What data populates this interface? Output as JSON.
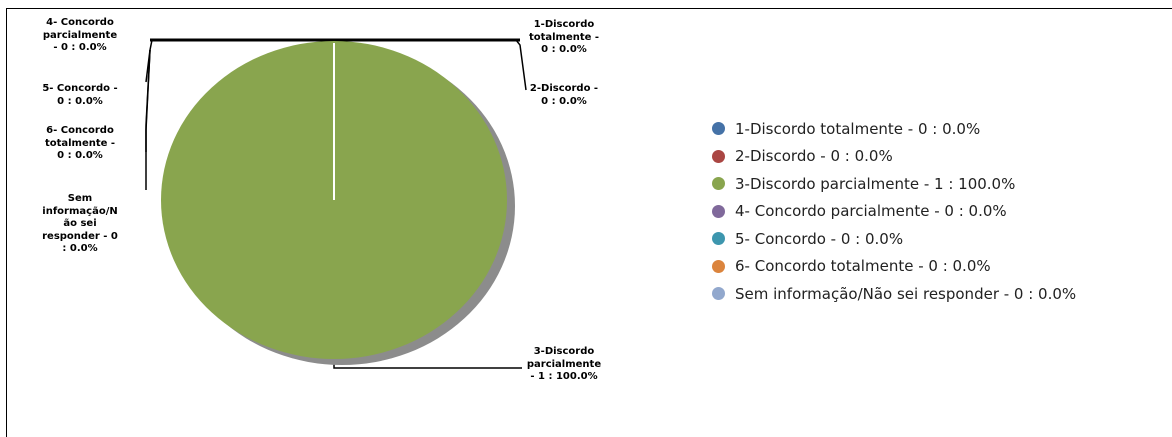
{
  "chart_data": {
    "type": "pie",
    "title": "",
    "categories": [
      "1-Discordo totalmente",
      "2-Discordo",
      "3-Discordo parcialmente",
      "4- Concordo parcialmente",
      "5- Concordo",
      "6- Concordo totalmente",
      "Sem informação/Não sei responder"
    ],
    "values": [
      0,
      0,
      1,
      0,
      0,
      0,
      0
    ],
    "colors": [
      "#4572a7",
      "#aa4643",
      "#89a54e",
      "#80699b",
      "#3d96ae",
      "#db843d",
      "#92a8cd"
    ],
    "callout_labels": [
      "1-Discordo\ntotalmente -\n0 : 0.0%",
      "2-Discordo -\n0 : 0.0%",
      "3-Discordo\nparcialmente\n- 1 : 100.0%",
      "4- Concordo\nparcialmente\n- 0 : 0.0%",
      "5- Concordo -\n0 : 0.0%",
      "6- Concordo\ntotalmente -\n0 : 0.0%",
      "Sem\ninformação/N\não sei\nresponder - 0\n: 0.0%"
    ],
    "legend": {
      "position": "right",
      "entries": [
        "1-Discordo totalmente  - 0 : 0.0%",
        "2-Discordo - 0 : 0.0%",
        "3-Discordo parcialmente  - 1 : 100.0%",
        "4- Concordo parcialmente  - 0 : 0.0%",
        "5- Concordo - 0 : 0.0%",
        "6- Concordo totalmente  - 0 : 0.0%",
        "Sem informação/Não sei responder - 0 : 0.0%"
      ]
    }
  }
}
